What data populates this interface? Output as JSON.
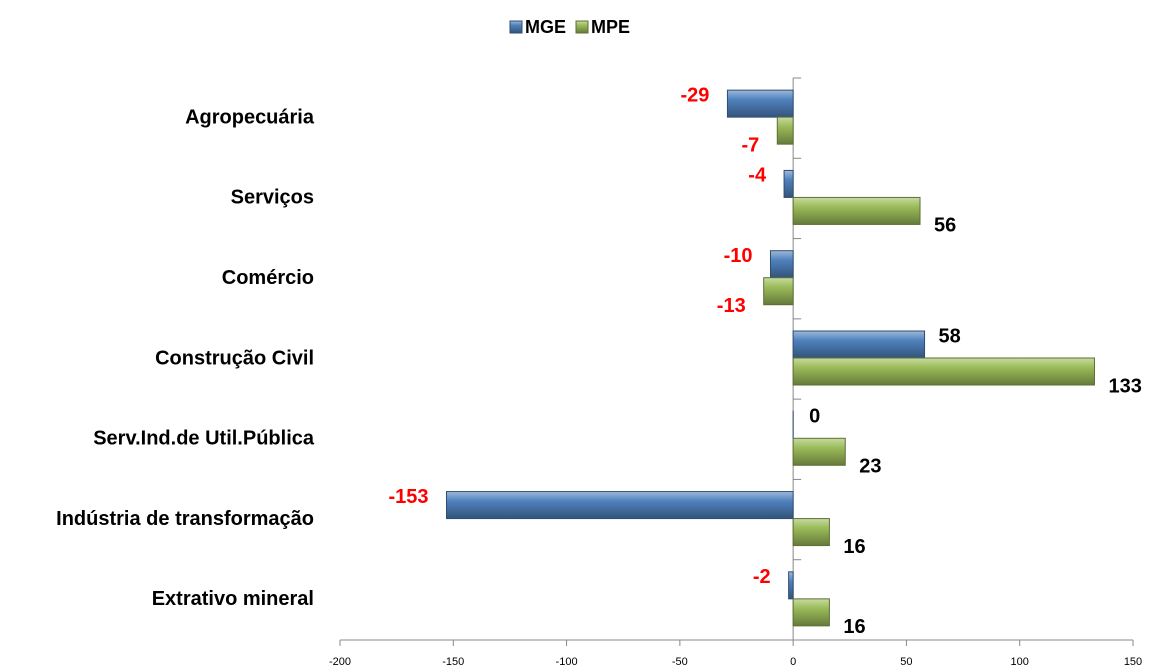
{
  "chart_data": {
    "type": "hbar",
    "categories": [
      "Agropecuária",
      "Serviços",
      "Comércio",
      "Construção Civil",
      "Serv.Ind.de Util.Pública",
      "Indústria de transformação",
      "Extrativo mineral"
    ],
    "series": [
      {
        "name": "MGE",
        "color": "#4f81bd",
        "values": [
          -29,
          -4,
          -10,
          58,
          0,
          -153,
          -2
        ]
      },
      {
        "name": "MPE",
        "color": "#9bbb59",
        "values": [
          -7,
          56,
          -13,
          133,
          23,
          16,
          16
        ]
      }
    ],
    "xlim": [
      -200,
      150
    ],
    "xticks": [
      -200,
      -150,
      -100,
      -50,
      0,
      50,
      100,
      150
    ],
    "legend": "top"
  }
}
